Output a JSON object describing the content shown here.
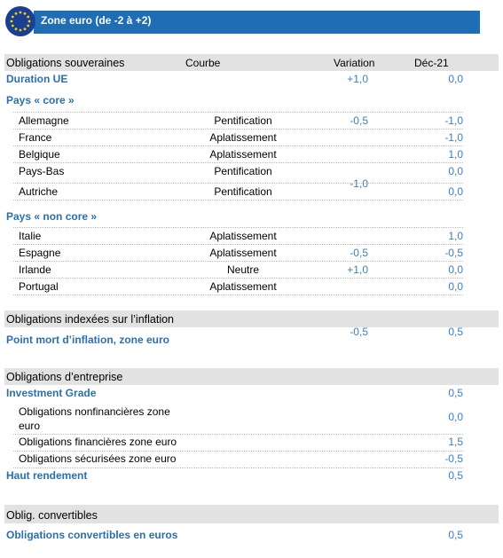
{
  "header": {
    "title": "Zone euro (de -2 à +2)"
  },
  "columns": {
    "curve": "Courbe",
    "variation": "Variation",
    "dec": "Déc-21"
  },
  "sections": [
    {
      "title": "Obligations souveraines",
      "summary": {
        "label": "Duration UE",
        "variation": "+1,0",
        "dec": "0,0"
      },
      "groups": [
        {
          "title": "Pays « core »",
          "rows": [
            {
              "label": "Allemagne",
              "curve": "Pentification",
              "variation": "-0,5",
              "dec": "-1,0"
            },
            {
              "label": "France",
              "curve": "Aplatissement",
              "dec": "-1,0"
            },
            {
              "label": "Belgique",
              "curve": "Aplatissement",
              "dec": "1,0"
            },
            {
              "label": "Pays-Bas",
              "curve": "Pentification",
              "dec": "0,0"
            },
            {
              "label": "Autriche",
              "curve": "Pentification",
              "variation": "-1,0",
              "dec": "0,0"
            }
          ]
        },
        {
          "title": "Pays « non core »",
          "rows": [
            {
              "label": "Italie",
              "curve": "Aplatissement",
              "dec": "1,0"
            },
            {
              "label": "Espagne",
              "curve": "Aplatissement",
              "variation": "-0,5",
              "dec": "-0,5"
            },
            {
              "label": "Irlande",
              "curve": "Neutre",
              "variation": "+1,0",
              "dec": "0,0"
            },
            {
              "label": "Portugal",
              "curve": "Aplatissement",
              "dec": "0,0"
            }
          ]
        }
      ]
    },
    {
      "title": "Obligations indexées sur l’inflation",
      "summary": {
        "label": "Point mort d’inflation, zone euro",
        "variation": "-0,5",
        "dec": "0,5"
      }
    },
    {
      "title": "Obligations d’entreprise",
      "summary": {
        "label": "Investment Grade",
        "dec": "0,5"
      },
      "rows": [
        {
          "label": "Obligations nonfinancières zone euro",
          "dec": "0,0"
        },
        {
          "label": "Obligations financières zone euro",
          "dec": "1,5"
        },
        {
          "label": "Obligations sécurisées zone euro",
          "dec": "-0,5"
        }
      ],
      "summary2": {
        "label": "Haut rendement",
        "dec": "0,5"
      }
    },
    {
      "title": "Oblig. convertibles",
      "summary": {
        "label": "Obligations convertibles en euros",
        "dec": "0,5"
      }
    }
  ]
}
